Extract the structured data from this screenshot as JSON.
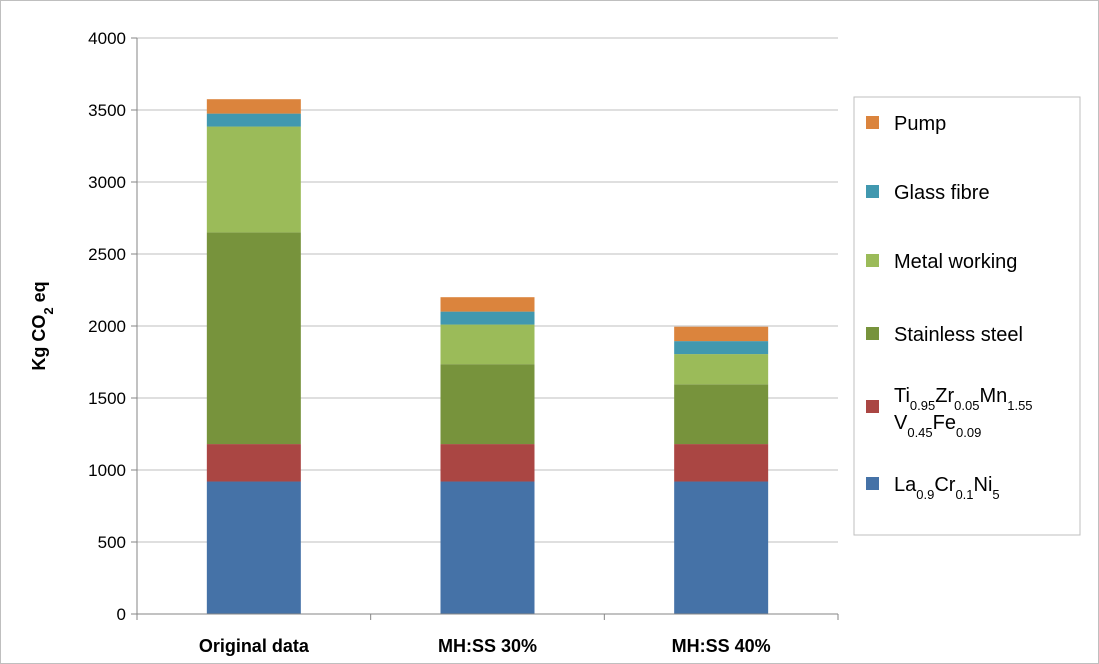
{
  "chart_data": {
    "type": "bar",
    "stacked": true,
    "categories": [
      "Original data",
      "MH:SS 30%",
      "MH:SS 40%"
    ],
    "series": [
      {
        "name": "La0.9Cr0.1Ni5",
        "name_parts": [
          {
            "t": "La",
            "s": false
          },
          {
            "t": "0.9",
            "s": true
          },
          {
            "t": "Cr",
            "s": false
          },
          {
            "t": "0.1",
            "s": true
          },
          {
            "t": "Ni",
            "s": false
          },
          {
            "t": "5",
            "s": true
          }
        ],
        "color": "#4572A7",
        "values": [
          920,
          920,
          920
        ]
      },
      {
        "name": "Ti0.95Zr0.05Mn1.55 V0.45Fe0.09",
        "name_lines": [
          [
            {
              "t": "Ti",
              "s": false
            },
            {
              "t": "0.95",
              "s": true
            },
            {
              "t": "Zr",
              "s": false
            },
            {
              "t": "0.05",
              "s": true
            },
            {
              "t": "Mn",
              "s": false
            },
            {
              "t": "1.55",
              "s": true
            }
          ],
          [
            {
              "t": "V",
              "s": false
            },
            {
              "t": "0.45",
              "s": true
            },
            {
              "t": "Fe",
              "s": false
            },
            {
              "t": "0.09",
              "s": true
            }
          ]
        ],
        "color": "#AA4643",
        "values": [
          260,
          260,
          260
        ]
      },
      {
        "name": "Stainless steel",
        "color": "#77933C",
        "values": [
          1470,
          555,
          415
        ]
      },
      {
        "name": "Metal working",
        "color": "#9BBB59",
        "values": [
          735,
          275,
          210
        ]
      },
      {
        "name": "Glass fibre",
        "color": "#4198AF",
        "values": [
          90,
          90,
          90
        ]
      },
      {
        "name": "Pump",
        "color": "#DB843D",
        "values": [
          100,
          100,
          100
        ]
      }
    ],
    "ylabel": "Kg CO2 eq",
    "ylabel_parts": [
      {
        "t": "Kg CO",
        "s": false
      },
      {
        "t": "2",
        "s": true
      },
      {
        "t": " eq",
        "s": false
      }
    ],
    "xlabel": "",
    "ylim": [
      0,
      4000
    ],
    "yticks": [
      0,
      500,
      1000,
      1500,
      2000,
      2500,
      3000,
      3500,
      4000
    ],
    "grid": true,
    "legend_position": "right"
  }
}
